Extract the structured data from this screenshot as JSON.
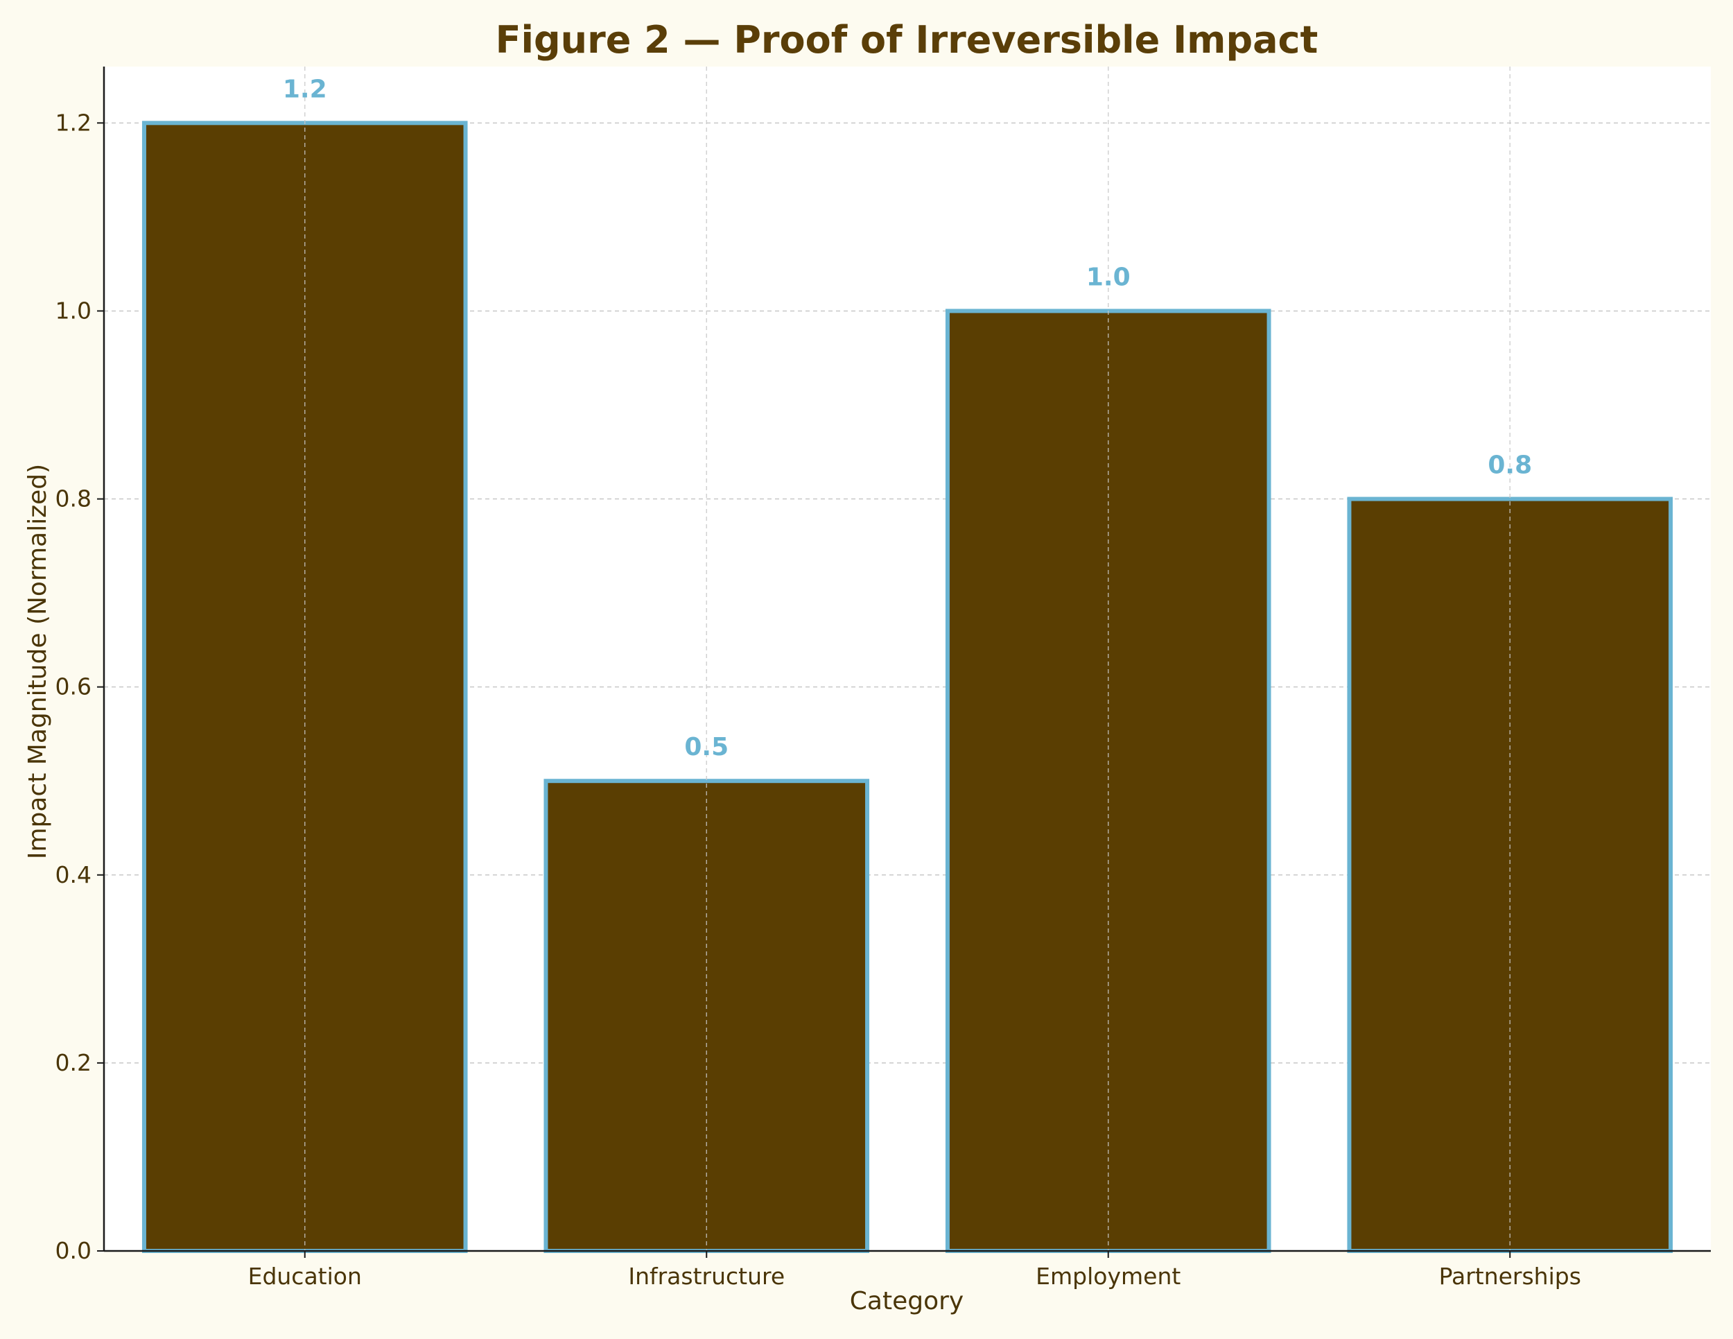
{
  "chart_data": {
    "type": "bar",
    "title": "Figure 2 — Proof of Irreversible Impact",
    "xlabel": "Category",
    "ylabel": "Impact Magnitude (Normalized)",
    "categories": [
      "Education",
      "Infrastructure",
      "Employment",
      "Partnerships"
    ],
    "values": [
      1.2,
      0.5,
      1.0,
      0.8
    ],
    "data_labels": [
      "1.2",
      "0.5",
      "1.0",
      "0.8"
    ],
    "ylim": [
      0,
      1.26
    ],
    "yticks": [
      0.0,
      0.2,
      0.4,
      0.6,
      0.8,
      1.0,
      1.2
    ],
    "ytick_labels": [
      "0.0",
      "0.2",
      "0.4",
      "0.6",
      "0.8",
      "1.0",
      "1.2"
    ],
    "grid": true,
    "colors": {
      "background": "#fdfbf0",
      "plot_background": "#ffffff",
      "bar_fill": "#5a3e02",
      "bar_edge": "#6ab4d2",
      "data_label": "#6ab4d2",
      "text": "#4a3508",
      "title": "#5a3e08",
      "grid": "#c8c8c8",
      "axis": "#1a1a1a"
    }
  }
}
